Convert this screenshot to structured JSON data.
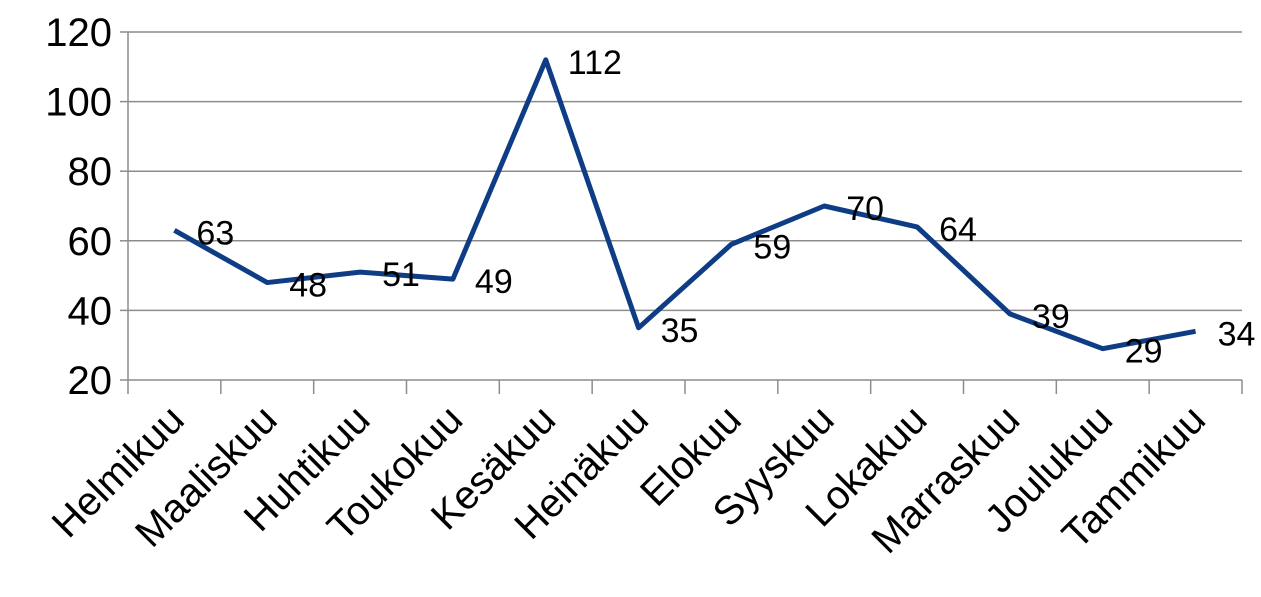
{
  "chart_data": {
    "type": "line",
    "categories": [
      "Helmikuu",
      "Maaliskuu",
      "Huhtikuu",
      "Toukokuu",
      "Kesäkuu",
      "Heinäkuu",
      "Elokuu",
      "Syyskuu",
      "Lokakuu",
      "Marraskuu",
      "Joulukuu",
      "Tammikuu"
    ],
    "values": [
      63,
      48,
      51,
      49,
      112,
      35,
      59,
      70,
      64,
      39,
      29,
      34
    ],
    "color": "#0f3d85",
    "ylim": [
      20,
      120
    ],
    "yticks": [
      20,
      40,
      60,
      80,
      100,
      120
    ],
    "grid": true
  }
}
